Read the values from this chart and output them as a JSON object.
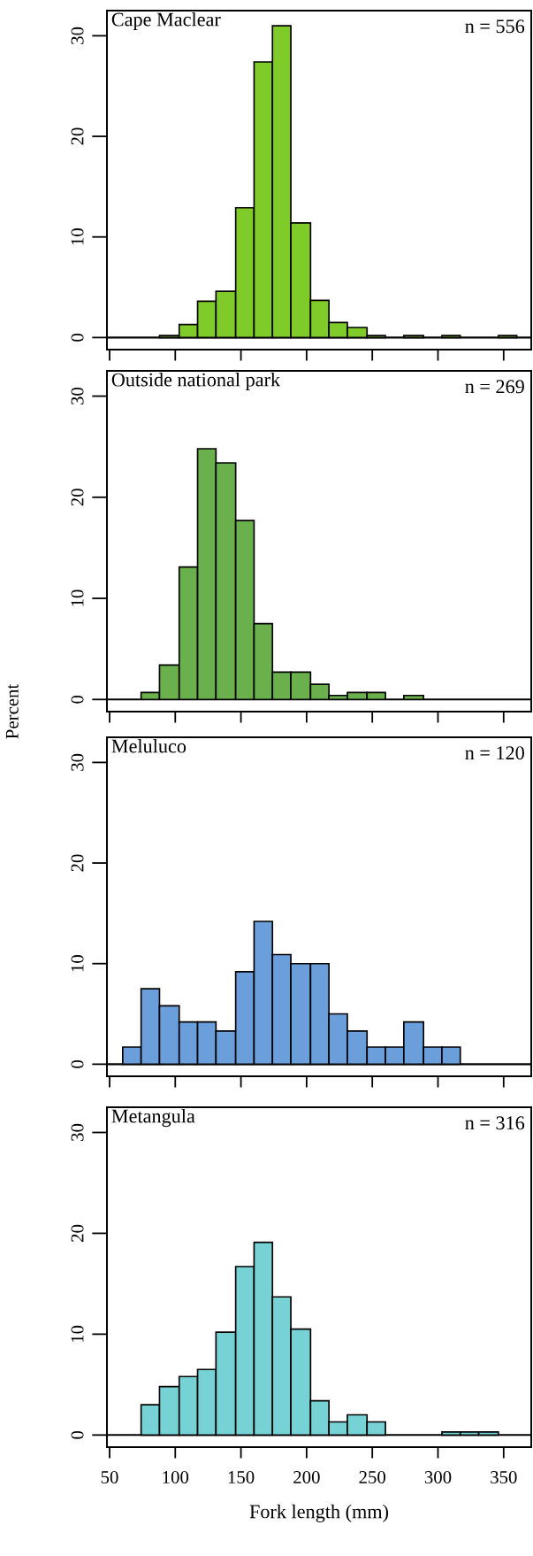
{
  "chart_data": [
    {
      "type": "histogram",
      "title": "Cape Maclear",
      "annotations": [
        "n = 556"
      ],
      "color": "#7fcb2a",
      "bins": [
        88,
        103,
        117,
        131,
        146,
        160,
        174,
        188,
        203,
        217,
        231,
        246,
        260,
        274,
        289,
        303,
        317,
        346,
        360
      ],
      "values": [
        0.2,
        1.3,
        3.6,
        4.6,
        12.9,
        27.4,
        31,
        11.4,
        3.7,
        1.5,
        1.0,
        0.2,
        0,
        0.2,
        0,
        0.2,
        0,
        0.2
      ],
      "xlim": [
        48,
        371
      ],
      "xticks": [
        50,
        100,
        150,
        200,
        250,
        300,
        350
      ],
      "ylim": [
        -1.2,
        32.5
      ],
      "yticks": [
        0,
        10,
        20,
        30
      ],
      "ref_lines": [
        {
          "axis": "y",
          "value": 0
        }
      ],
      "tick_labels": "y",
      "grid": false,
      "legend": false
    },
    {
      "type": "histogram",
      "title": "Outside national park",
      "annotations": [
        "n = 269"
      ],
      "color": "#6ab04c",
      "ylabel": "Percent",
      "bins": [
        74,
        88,
        103,
        117,
        131,
        146,
        160,
        174,
        188,
        203,
        217,
        231,
        246,
        260,
        274,
        289
      ],
      "values": [
        0.7,
        3.4,
        13.1,
        24.8,
        23.4,
        17.7,
        7.5,
        2.7,
        2.7,
        1.5,
        0.4,
        0.7,
        0.7,
        0,
        0.4
      ],
      "xlim": [
        48,
        371
      ],
      "xticks": [
        50,
        100,
        150,
        200,
        250,
        300,
        350
      ],
      "ylim": [
        -1.2,
        32.5
      ],
      "yticks": [
        0,
        10,
        20,
        30
      ],
      "ref_lines": [
        {
          "axis": "y",
          "value": 0
        }
      ],
      "tick_labels": "y",
      "grid": false,
      "legend": false
    },
    {
      "type": "histogram",
      "title": "Meluluco",
      "annotations": [
        "n = 120"
      ],
      "color": "#6a9fdb",
      "bins": [
        60,
        74,
        88,
        103,
        117,
        131,
        146,
        160,
        174,
        188,
        203,
        217,
        231,
        246,
        260,
        274,
        289,
        303,
        317
      ],
      "values": [
        1.7,
        7.5,
        5.8,
        4.2,
        4.2,
        3.3,
        9.2,
        14.2,
        10.9,
        10.0,
        10.0,
        5.0,
        3.3,
        1.7,
        1.7,
        4.2,
        1.7,
        1.7
      ],
      "xlim": [
        48,
        371
      ],
      "xticks": [
        50,
        100,
        150,
        200,
        250,
        300,
        350
      ],
      "ylim": [
        -1.2,
        32.5
      ],
      "yticks": [
        0,
        10,
        20,
        30
      ],
      "ref_lines": [
        {
          "axis": "y",
          "value": 0
        }
      ],
      "tick_labels": "y",
      "grid": false,
      "legend": false
    },
    {
      "type": "histogram",
      "title": "Metangula",
      "annotations": [
        "n = 316"
      ],
      "color": "#76d2d4",
      "xlabel": "Fork length (mm)",
      "bins": [
        74,
        88,
        103,
        117,
        131,
        146,
        160,
        174,
        188,
        203,
        217,
        231,
        246,
        260,
        303,
        317,
        331,
        346
      ],
      "values": [
        3.0,
        4.8,
        5.8,
        6.5,
        10.2,
        16.7,
        19.1,
        13.7,
        10.5,
        3.4,
        1.3,
        2.0,
        1.3,
        0,
        0.3,
        0.3,
        0.3
      ],
      "xlim": [
        48,
        371
      ],
      "xticks": [
        50,
        100,
        150,
        200,
        250,
        300,
        350
      ],
      "ylim": [
        -1.2,
        32.5
      ],
      "yticks": [
        0,
        10,
        20,
        30
      ],
      "ref_lines": [
        {
          "axis": "y",
          "value": 0
        }
      ],
      "grid": false,
      "legend": false
    }
  ]
}
